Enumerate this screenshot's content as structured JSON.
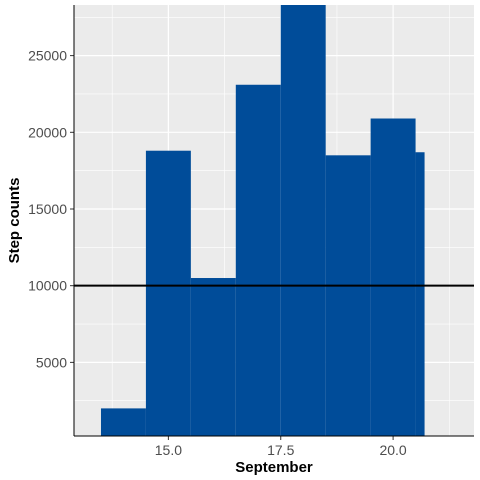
{
  "chart_data": {
    "type": "bar",
    "xlabel": "September",
    "ylabel": "Step counts",
    "xlim": [
      12.9,
      21.8
    ],
    "ylim": [
      200,
      28300
    ],
    "x_ticks": [
      15.0,
      17.5,
      20.0
    ],
    "x_tick_labels": [
      "15.0",
      "17.5",
      "20.0"
    ],
    "y_ticks": [
      5000,
      10000,
      15000,
      20000,
      25000
    ],
    "y_tick_labels": [
      "5000",
      "10000",
      "15000",
      "20000",
      "25000"
    ],
    "bars": [
      {
        "x_start": 13.5,
        "x_end": 14.5,
        "value": 2000
      },
      {
        "x_start": 14.5,
        "x_end": 15.5,
        "value": 18800
      },
      {
        "x_start": 15.5,
        "x_end": 16.5,
        "value": 10500
      },
      {
        "x_start": 16.5,
        "x_end": 17.5,
        "value": 23100
      },
      {
        "x_start": 17.5,
        "x_end": 18.5,
        "value": 28300
      },
      {
        "x_start": 18.5,
        "x_end": 19.5,
        "value": 18500
      },
      {
        "x_start": 19.5,
        "x_end": 20.5,
        "value": 20900
      },
      {
        "x_start": 20.5,
        "x_end": 20.7,
        "value": 18700
      }
    ],
    "reference_line": {
      "y": 10000,
      "color": "#000000"
    },
    "grid": true,
    "bar_color": "#004c99",
    "panel_background": "#ebebeb",
    "grid_color": "#ffffff"
  }
}
